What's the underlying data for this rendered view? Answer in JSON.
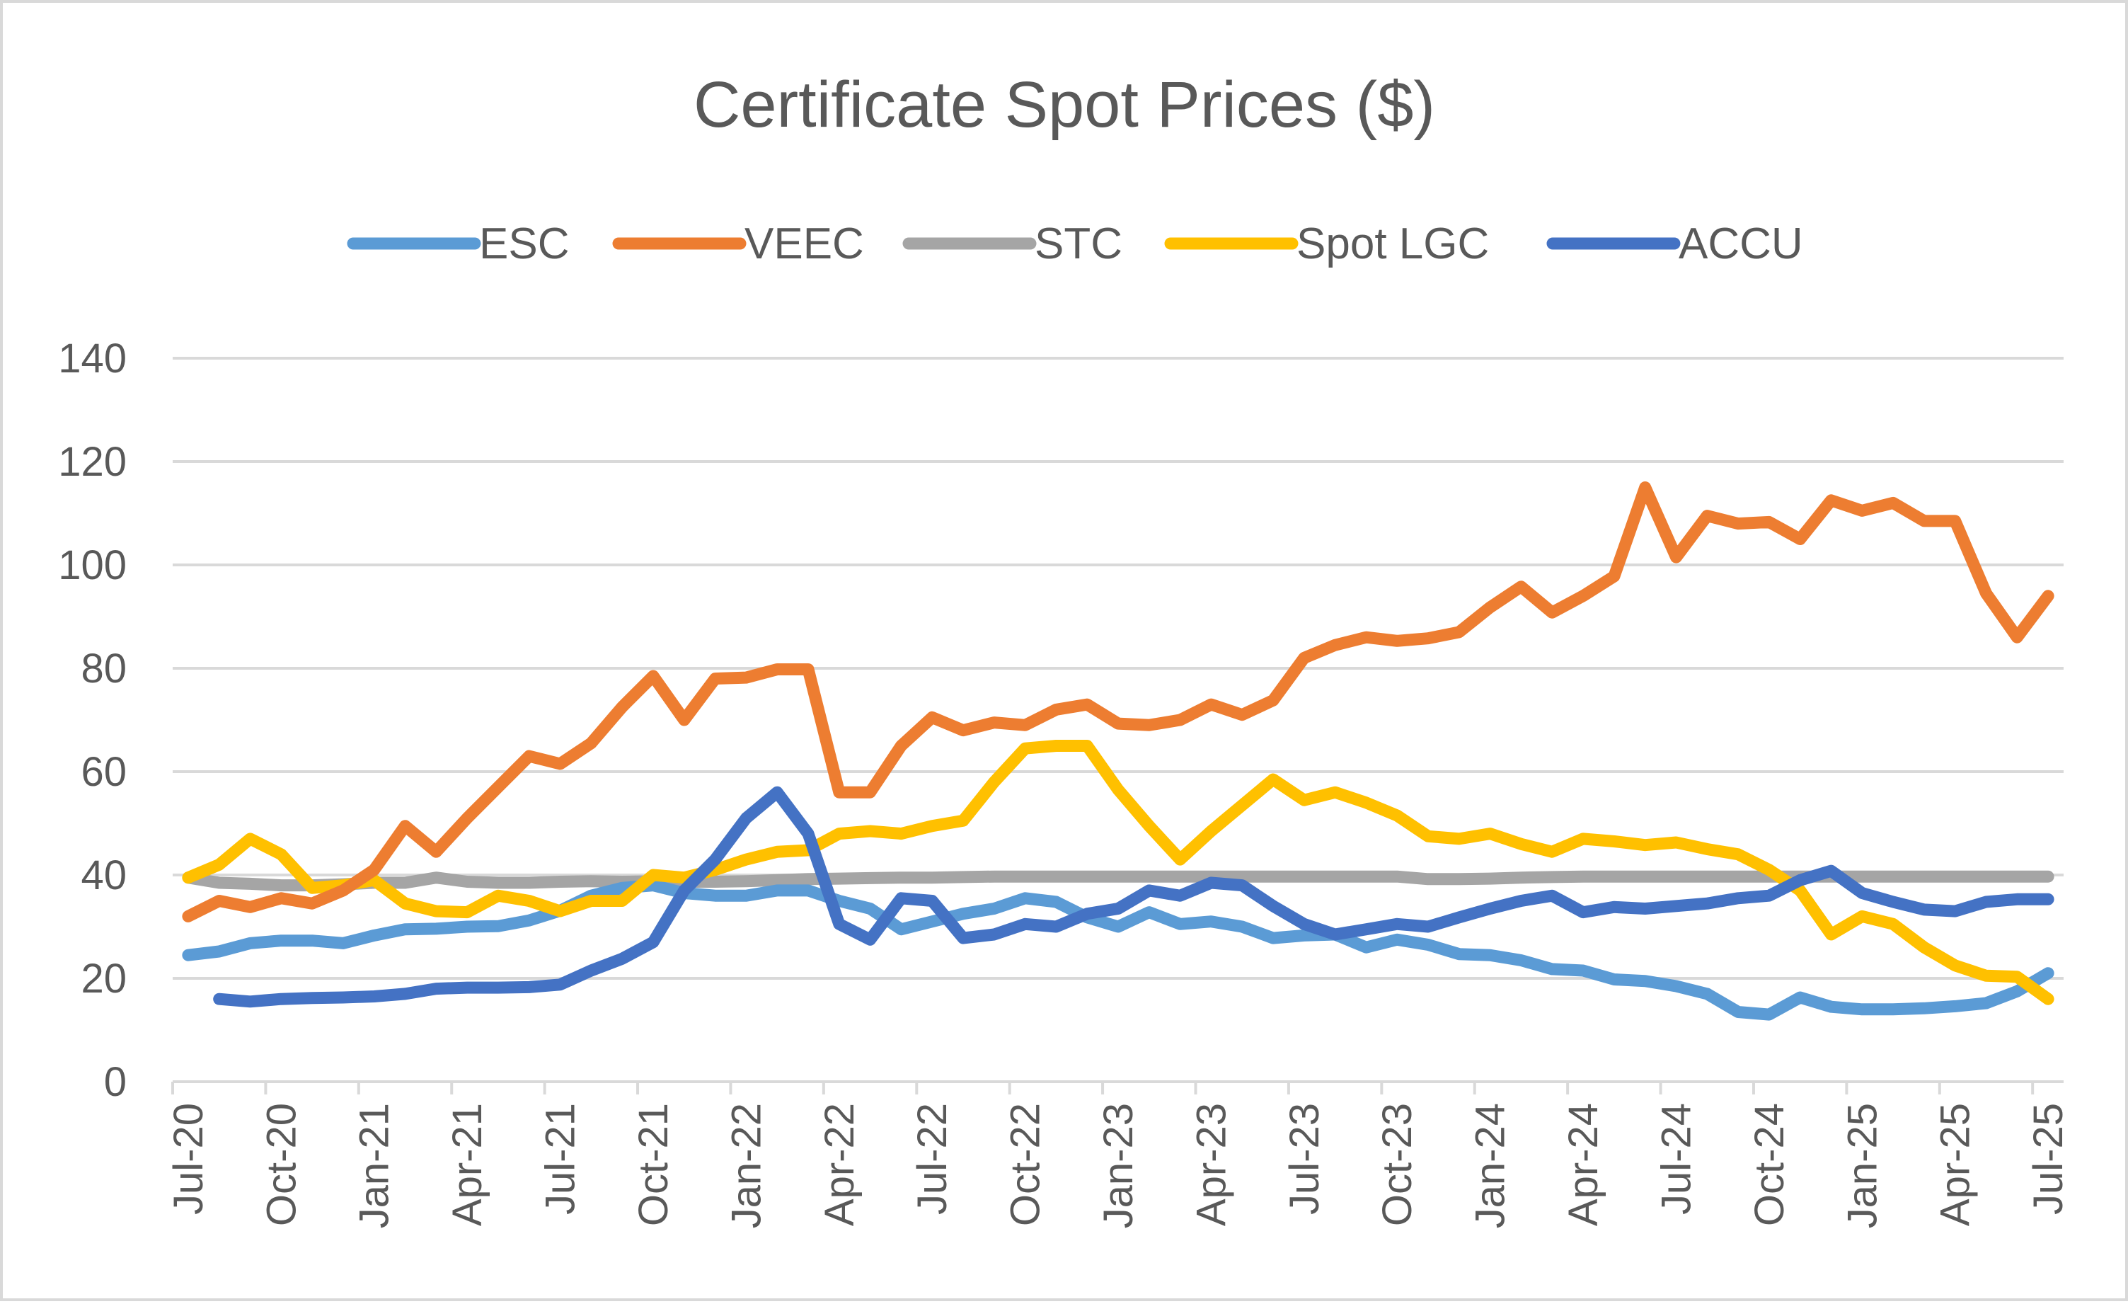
{
  "chart_data": {
    "type": "line",
    "title": "Certificate Spot Prices ($)",
    "xlabel": "",
    "ylabel": "",
    "ylim": [
      0,
      140
    ],
    "yticks": [
      "0",
      "20",
      "40",
      "60",
      "80",
      "100",
      "120",
      "140"
    ],
    "xticks": [
      "Jul-20",
      "Oct-20",
      "Jan-21",
      "Apr-21",
      "Jul-21",
      "Oct-21",
      "Jan-22",
      "Apr-22",
      "Jul-22",
      "Oct-22",
      "Jan-23",
      "Apr-23",
      "Jul-23",
      "Oct-23",
      "Jan-24",
      "Apr-24",
      "Jul-24",
      "Oct-24",
      "Jan-25",
      "Apr-25",
      "Jul-25"
    ],
    "x": [
      "Jul-20",
      "Aug-20",
      "Sep-20",
      "Oct-20",
      "Nov-20",
      "Dec-20",
      "Jan-21",
      "Feb-21",
      "Mar-21",
      "Apr-21",
      "May-21",
      "Jun-21",
      "Jul-21",
      "Aug-21",
      "Sep-21",
      "Oct-21",
      "Nov-21",
      "Dec-21",
      "Jan-22",
      "Feb-22",
      "Mar-22",
      "Apr-22",
      "May-22",
      "Jun-22",
      "Jul-22",
      "Aug-22",
      "Sep-22",
      "Oct-22",
      "Nov-22",
      "Dec-22",
      "Jan-23",
      "Feb-23",
      "Mar-23",
      "Apr-23",
      "May-23",
      "Jun-23",
      "Jul-23",
      "Aug-23",
      "Sep-23",
      "Oct-23",
      "Nov-23",
      "Dec-23",
      "Jan-24",
      "Feb-24",
      "Mar-24",
      "Apr-24",
      "May-24",
      "Jun-24",
      "Jul-24",
      "Aug-24",
      "Sep-24",
      "Oct-24",
      "Nov-24",
      "Dec-24",
      "Jan-25",
      "Feb-25",
      "Mar-25",
      "Apr-25",
      "May-25",
      "Jun-25",
      "Jul-25"
    ],
    "grid": true,
    "legend_position": "top",
    "series": [
      {
        "name": "ESC",
        "color": "#5b9bd5",
        "values": [
          24.5,
          25.2,
          26.8,
          27.3,
          27.3,
          26.8,
          28.3,
          29.5,
          29.6,
          30.0,
          30.1,
          31.2,
          33.1,
          36.0,
          37.5,
          38.0,
          36.5,
          36.0,
          36.0,
          37.0,
          37.0,
          35.0,
          33.5,
          29.5,
          31.0,
          32.5,
          33.5,
          35.5,
          34.8,
          31.8,
          30.0,
          32.8,
          30.5,
          31.0,
          30.0,
          27.8,
          28.3,
          28.5,
          26.0,
          27.5,
          26.5,
          24.7,
          24.5,
          23.5,
          21.8,
          21.5,
          19.8,
          19.5,
          18.5,
          17.0,
          13.5,
          13.0,
          16.3,
          14.5,
          14.0,
          14.0,
          14.2,
          14.6,
          15.2,
          17.5,
          21.0
        ]
      },
      {
        "name": "VEEC",
        "color": "#ed7d31",
        "values": [
          32.0,
          35.0,
          33.8,
          35.5,
          34.5,
          37.0,
          41.0,
          49.5,
          44.5,
          51.0,
          57.0,
          63.0,
          61.5,
          65.5,
          72.5,
          78.5,
          70.0,
          78.0,
          78.2,
          79.8,
          79.8,
          56.0,
          56.0,
          65.0,
          70.5,
          68.0,
          69.5,
          69.0,
          72.0,
          73.0,
          69.3,
          69.0,
          70.0,
          73.0,
          71.0,
          73.8,
          82.0,
          84.5,
          86.0,
          85.3,
          85.8,
          87.0,
          91.8,
          95.8,
          90.8,
          94.0,
          97.8,
          115.0,
          101.5,
          109.5,
          108.0,
          108.3,
          105.0,
          112.5,
          110.5,
          112.0,
          108.5,
          108.5,
          94.5,
          86.0,
          94.0
        ]
      },
      {
        "name": "STC",
        "color": "#a5a5a5",
        "values": [
          39.5,
          38.5,
          38.3,
          38.0,
          38.0,
          38.2,
          38.5,
          38.5,
          39.5,
          38.7,
          38.5,
          38.5,
          38.7,
          38.8,
          38.7,
          38.8,
          38.7,
          38.7,
          38.8,
          39.0,
          39.2,
          39.3,
          39.4,
          39.5,
          39.5,
          39.6,
          39.7,
          39.7,
          39.7,
          39.7,
          39.7,
          39.7,
          39.7,
          39.7,
          39.7,
          39.7,
          39.7,
          39.7,
          39.7,
          39.7,
          39.2,
          39.2,
          39.3,
          39.5,
          39.6,
          39.7,
          39.7,
          39.7,
          39.7,
          39.7,
          39.7,
          39.7,
          39.7,
          39.7,
          39.7,
          39.7,
          39.7,
          39.7,
          39.7,
          39.7,
          39.7
        ]
      },
      {
        "name": "Spot LGC",
        "color": "#ffc000",
        "values": [
          39.5,
          42.0,
          47.0,
          44.0,
          37.5,
          38.0,
          39.0,
          34.5,
          33.0,
          32.8,
          36.0,
          35.0,
          33.0,
          35.0,
          35.0,
          40.0,
          39.5,
          41.0,
          43.0,
          44.5,
          44.8,
          48.0,
          48.5,
          48.0,
          49.5,
          50.5,
          58.0,
          64.5,
          65.0,
          65.0,
          56.5,
          49.5,
          43.0,
          48.5,
          53.5,
          58.5,
          54.5,
          56.0,
          54.0,
          51.5,
          47.5,
          47.0,
          48.0,
          46.0,
          44.5,
          47.0,
          46.5,
          45.8,
          46.3,
          45.0,
          44.0,
          41.0,
          37.0,
          28.5,
          32.0,
          30.5,
          26.0,
          22.5,
          20.5,
          20.3,
          16.0
        ]
      },
      {
        "name": "ACCU",
        "color": "#4472c4",
        "values": [
          null,
          16.0,
          15.5,
          16.0,
          16.2,
          16.3,
          16.5,
          17.0,
          18.0,
          18.2,
          18.2,
          18.3,
          18.8,
          21.5,
          23.8,
          27.0,
          37.0,
          43.0,
          51.0,
          56.0,
          48.0,
          30.5,
          27.5,
          35.5,
          35.0,
          27.8,
          28.5,
          30.5,
          30.0,
          32.5,
          33.5,
          37.0,
          36.0,
          38.5,
          38.0,
          34.0,
          30.5,
          28.5,
          29.5,
          30.5,
          30.0,
          31.8,
          33.5,
          35.0,
          36.0,
          32.8,
          33.8,
          33.5,
          34.0,
          34.5,
          35.5,
          36.0,
          39.0,
          40.8,
          36.5,
          34.8,
          33.3,
          33.0,
          34.8,
          35.3,
          35.3
        ]
      }
    ]
  }
}
